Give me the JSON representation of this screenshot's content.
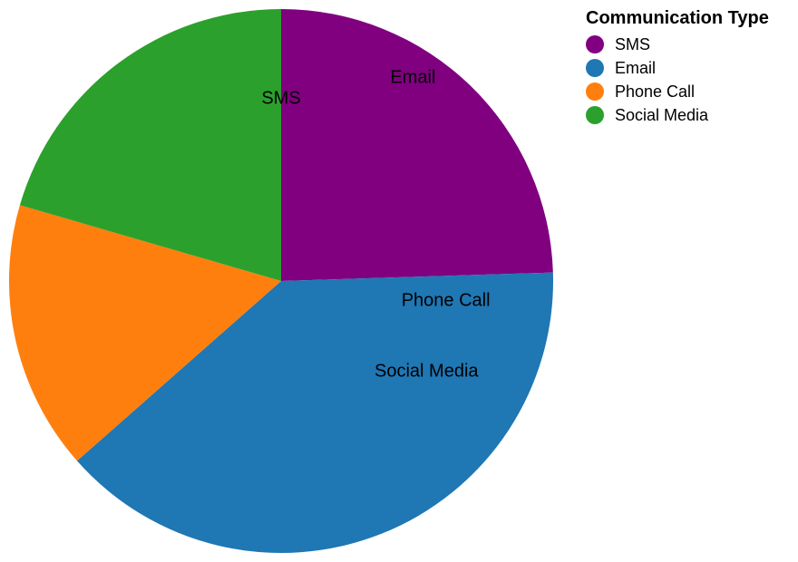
{
  "chart_data": {
    "type": "pie",
    "categories": [
      "SMS",
      "Email",
      "Phone Call",
      "Social Media"
    ],
    "values": [
      24.5,
      39.0,
      16.0,
      20.5
    ],
    "colors": [
      "#800080",
      "#1f77b4",
      "#ff7f0e",
      "#2ca02c"
    ],
    "legend": {
      "title": "Communication Type",
      "placement": "top-right"
    },
    "slice_labels": [
      "SMS",
      "Email",
      "Phone Call",
      "Social Media"
    ]
  }
}
